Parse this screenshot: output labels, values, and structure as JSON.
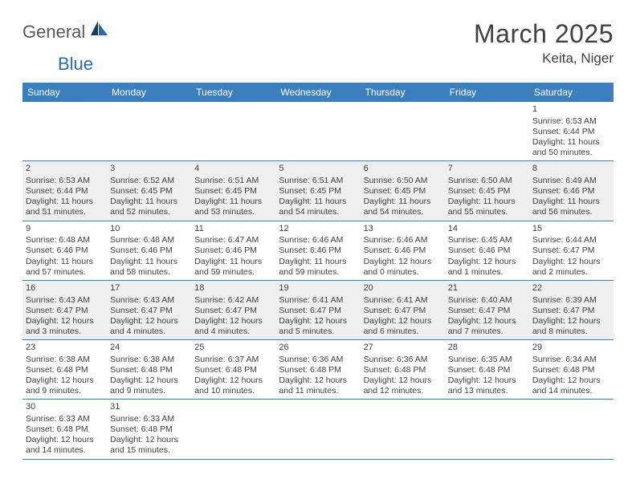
{
  "brand": {
    "text_general": "General",
    "text_blue": "Blue",
    "sail_color": "#2a6bb0",
    "sail_dark": "#163e63"
  },
  "title": "March 2025",
  "location": "Keita, Niger",
  "colors": {
    "header_bg": "#3b7fbf",
    "header_fg": "#ffffff",
    "row_border": "#3b7fbf",
    "shaded_bg": "#efefef",
    "text": "#404040"
  },
  "weekdays": [
    "Sunday",
    "Monday",
    "Tuesday",
    "Wednesday",
    "Thursday",
    "Friday",
    "Saturday"
  ],
  "weeks": [
    [
      null,
      null,
      null,
      null,
      null,
      null,
      {
        "n": "1",
        "sunrise": "6:53 AM",
        "sunset": "6:44 PM",
        "day_h": "11",
        "day_m": "50"
      }
    ],
    [
      {
        "n": "2",
        "sunrise": "6:53 AM",
        "sunset": "6:44 PM",
        "day_h": "11",
        "day_m": "51"
      },
      {
        "n": "3",
        "sunrise": "6:52 AM",
        "sunset": "6:45 PM",
        "day_h": "11",
        "day_m": "52"
      },
      {
        "n": "4",
        "sunrise": "6:51 AM",
        "sunset": "6:45 PM",
        "day_h": "11",
        "day_m": "53"
      },
      {
        "n": "5",
        "sunrise": "6:51 AM",
        "sunset": "6:45 PM",
        "day_h": "11",
        "day_m": "54"
      },
      {
        "n": "6",
        "sunrise": "6:50 AM",
        "sunset": "6:45 PM",
        "day_h": "11",
        "day_m": "54"
      },
      {
        "n": "7",
        "sunrise": "6:50 AM",
        "sunset": "6:45 PM",
        "day_h": "11",
        "day_m": "55"
      },
      {
        "n": "8",
        "sunrise": "6:49 AM",
        "sunset": "6:46 PM",
        "day_h": "11",
        "day_m": "56"
      }
    ],
    [
      {
        "n": "9",
        "sunrise": "6:48 AM",
        "sunset": "6:46 PM",
        "day_h": "11",
        "day_m": "57"
      },
      {
        "n": "10",
        "sunrise": "6:48 AM",
        "sunset": "6:46 PM",
        "day_h": "11",
        "day_m": "58"
      },
      {
        "n": "11",
        "sunrise": "6:47 AM",
        "sunset": "6:46 PM",
        "day_h": "11",
        "day_m": "59"
      },
      {
        "n": "12",
        "sunrise": "6:46 AM",
        "sunset": "6:46 PM",
        "day_h": "11",
        "day_m": "59"
      },
      {
        "n": "13",
        "sunrise": "6:46 AM",
        "sunset": "6:46 PM",
        "day_h": "12",
        "day_m": "0"
      },
      {
        "n": "14",
        "sunrise": "6:45 AM",
        "sunset": "6:46 PM",
        "day_h": "12",
        "day_m": "1"
      },
      {
        "n": "15",
        "sunrise": "6:44 AM",
        "sunset": "6:47 PM",
        "day_h": "12",
        "day_m": "2"
      }
    ],
    [
      {
        "n": "16",
        "sunrise": "6:43 AM",
        "sunset": "6:47 PM",
        "day_h": "12",
        "day_m": "3"
      },
      {
        "n": "17",
        "sunrise": "6:43 AM",
        "sunset": "6:47 PM",
        "day_h": "12",
        "day_m": "4"
      },
      {
        "n": "18",
        "sunrise": "6:42 AM",
        "sunset": "6:47 PM",
        "day_h": "12",
        "day_m": "4"
      },
      {
        "n": "19",
        "sunrise": "6:41 AM",
        "sunset": "6:47 PM",
        "day_h": "12",
        "day_m": "5"
      },
      {
        "n": "20",
        "sunrise": "6:41 AM",
        "sunset": "6:47 PM",
        "day_h": "12",
        "day_m": "6"
      },
      {
        "n": "21",
        "sunrise": "6:40 AM",
        "sunset": "6:47 PM",
        "day_h": "12",
        "day_m": "7"
      },
      {
        "n": "22",
        "sunrise": "6:39 AM",
        "sunset": "6:47 PM",
        "day_h": "12",
        "day_m": "8"
      }
    ],
    [
      {
        "n": "23",
        "sunrise": "6:38 AM",
        "sunset": "6:48 PM",
        "day_h": "12",
        "day_m": "9"
      },
      {
        "n": "24",
        "sunrise": "6:38 AM",
        "sunset": "6:48 PM",
        "day_h": "12",
        "day_m": "9"
      },
      {
        "n": "25",
        "sunrise": "6:37 AM",
        "sunset": "6:48 PM",
        "day_h": "12",
        "day_m": "10"
      },
      {
        "n": "26",
        "sunrise": "6:36 AM",
        "sunset": "6:48 PM",
        "day_h": "12",
        "day_m": "11"
      },
      {
        "n": "27",
        "sunrise": "6:36 AM",
        "sunset": "6:48 PM",
        "day_h": "12",
        "day_m": "12"
      },
      {
        "n": "28",
        "sunrise": "6:35 AM",
        "sunset": "6:48 PM",
        "day_h": "12",
        "day_m": "13"
      },
      {
        "n": "29",
        "sunrise": "6:34 AM",
        "sunset": "6:48 PM",
        "day_h": "12",
        "day_m": "14"
      }
    ],
    [
      {
        "n": "30",
        "sunrise": "6:33 AM",
        "sunset": "6:48 PM",
        "day_h": "12",
        "day_m": "14"
      },
      {
        "n": "31",
        "sunrise": "6:33 AM",
        "sunset": "6:48 PM",
        "day_h": "12",
        "day_m": "15"
      },
      null,
      null,
      null,
      null,
      null
    ]
  ],
  "labels": {
    "sunrise": "Sunrise:",
    "sunset": "Sunset:",
    "daylight_prefix": "Daylight:",
    "hours_word": "hours",
    "and_word": "and",
    "minutes_word": "minutes."
  },
  "shaded_rows": [
    1,
    3
  ]
}
